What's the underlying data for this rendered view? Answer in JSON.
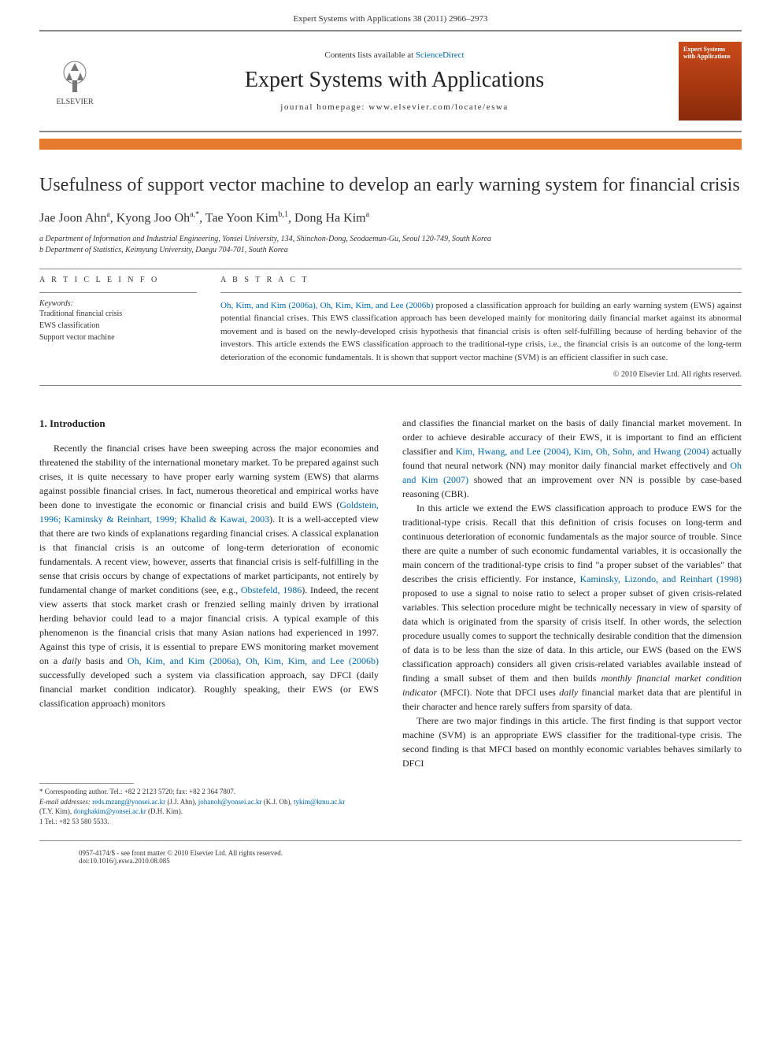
{
  "header": {
    "citation": "Expert Systems with Applications 38 (2011) 2966–2973"
  },
  "banner": {
    "publisher": "ELSEVIER",
    "contents_prefix": "Contents lists available at ",
    "contents_link": "ScienceDirect",
    "journal_name": "Expert Systems with Applications",
    "homepage_prefix": "journal homepage: ",
    "homepage_url": "www.elsevier.com/locate/eswa",
    "cover_text": "Expert Systems with Applications"
  },
  "colors": {
    "orange_bar": "#e67a2e",
    "link": "#0066aa",
    "cover_grad_top": "#c94a1a",
    "cover_grad_bottom": "#8a2a0a",
    "rule": "#888888"
  },
  "article": {
    "title": "Usefulness of support vector machine to develop an early warning system for financial crisis",
    "authors_html": "Jae Joon Ahn<sup>a</sup>, Kyong Joo Oh<sup>a,*</sup>, Tae Yoon Kim<sup>b,1</sup>, Dong Ha Kim<sup>a</sup>",
    "affiliations": [
      "a Department of Information and Industrial Engineering, Yonsei University, 134, Shinchon-Dong, Seodaemun-Gu, Seoul 120-749, South Korea",
      "b Department of Statistics, Keimyung University, Daegu 704-701, South Korea"
    ]
  },
  "meta": {
    "info_heading": "A R T I C L E   I N F O",
    "abstract_heading": "A B S T R A C T",
    "keywords_label": "Keywords:",
    "keywords": [
      "Traditional financial crisis",
      "EWS classification",
      "Support vector machine"
    ],
    "abstract_ref": "Oh, Kim, and Kim (2006a), Oh, Kim, Kim, and Lee (2006b)",
    "abstract_body": " proposed a classification approach for building an early warning system (EWS) against potential financial crises. This EWS classification approach has been developed mainly for monitoring daily financial market against its abnormal movement and is based on the newly-developed crisis hypothesis that financial crisis is often self-fulfilling because of herding behavior of the investors. This article extends the EWS classification approach to the traditional-type crisis, i.e., the financial crisis is an outcome of the long-term deterioration of the economic fundamentals. It is shown that support vector machine (SVM) is an efficient classifier in such case.",
    "copyright": "© 2010 Elsevier Ltd. All rights reserved."
  },
  "body": {
    "section_heading": "1. Introduction",
    "left_paragraph": "Recently the financial crises have been sweeping across the major economies and threatened the stability of the international monetary market. To be prepared against such crises, it is quite necessary to have proper early warning system (EWS) that alarms against possible financial crises. In fact, numerous theoretical and empirical works have been done to investigate the economic or financial crisis and build EWS (Goldstein, 1996; Kaminsky & Reinhart, 1999; Khalid & Kawai, 2003). It is a well-accepted view that there are two kinds of explanations regarding financial crises. A classical explanation is that financial crisis is an outcome of long-term deterioration of economic fundamentals. A recent view, however, asserts that financial crisis is self-fulfilling in the sense that crisis occurs by change of expectations of market participants, not entirely by fundamental change of market conditions (see, e.g., Obstefeld, 1986). Indeed, the recent view asserts that stock market crash or frenzied selling mainly driven by irrational herding behavior could lead to a major financial crisis. A typical example of this phenomenon is the financial crisis that many Asian nations had experienced in 1997. Against this type of crisis, it is essential to prepare EWS monitoring market movement on a daily basis and Oh, Kim, and Kim (2006a), Oh, Kim, Kim, and Lee (2006b) successfully developed such a system via classification approach, say DFCI (daily financial market condition indicator). Roughly speaking, their EWS (or EWS classification approach) monitors",
    "left_refs": [
      "Goldstein, 1996; Kaminsky & Reinhart, 1999; Khalid & Kawai, 2003",
      "Obstefeld, 1986",
      "Oh, Kim, and Kim (2006a), Oh, Kim, Kim, and Lee (2006b)"
    ],
    "right_paragraph_1": "and classifies the financial market on the basis of daily financial market movement. In order to achieve desirable accuracy of their EWS, it is important to find an efficient classifier and Kim, Hwang, and Lee (2004), Kim, Oh, Sohn, and Hwang (2004) actually found that neural network (NN) may monitor daily financial market effectively and Oh and Kim (2007) showed that an improvement over NN is possible by case-based reasoning (CBR).",
    "right_paragraph_2": "In this article we extend the EWS classification approach to produce EWS for the traditional-type crisis. Recall that this definition of crisis focuses on long-term and continuous deterioration of economic fundamentals as the major source of trouble. Since there are quite a number of such economic fundamental variables, it is occasionally the main concern of the traditional-type crisis to find \"a proper subset of the variables\" that describes the crisis efficiently. For instance, Kaminsky, Lizondo, and Reinhart (1998) proposed to use a signal to noise ratio to select a proper subset of given crisis-related variables. This selection procedure might be technically necessary in view of sparsity of data which is originated from the sparsity of crisis itself. In other words, the selection procedure usually comes to support the technically desirable condition that the dimension of data is to be less than the size of data. In this article, our EWS (based on the EWS classification approach) considers all given crisis-related variables available instead of finding a small subset of them and then builds monthly financial market condition indicator (MFCI). Note that DFCI uses daily financial market data that are plentiful in their character and hence rarely suffers from sparsity of data.",
    "right_paragraph_3": "There are two major findings in this article. The first finding is that support vector machine (SVM) is an appropriate EWS classifier for the traditional-type crisis. The second finding is that MFCI based on monthly economic variables behaves similarly to DFCI"
  },
  "footnotes": {
    "corr": "* Corresponding author. Tel.: +82 2 2123 5720; fax: +82 2 364 7807.",
    "emails_label": "E-mail addresses:",
    "emails": " reds.mzang@yonsei.ac.kr (J.J. Ahn), johanoh@yonsei.ac.kr (K.J. Oh), tykim@kmu.ac.kr (T.Y. Kim), donghakim@yonsei.ac.kr (D.H. Kim).",
    "tel": "1 Tel.: +82 53 580 5533."
  },
  "bottom": {
    "line1": "0957-4174/$ - see front matter © 2010 Elsevier Ltd. All rights reserved.",
    "line2": "doi:10.1016/j.eswa.2010.08.085"
  }
}
